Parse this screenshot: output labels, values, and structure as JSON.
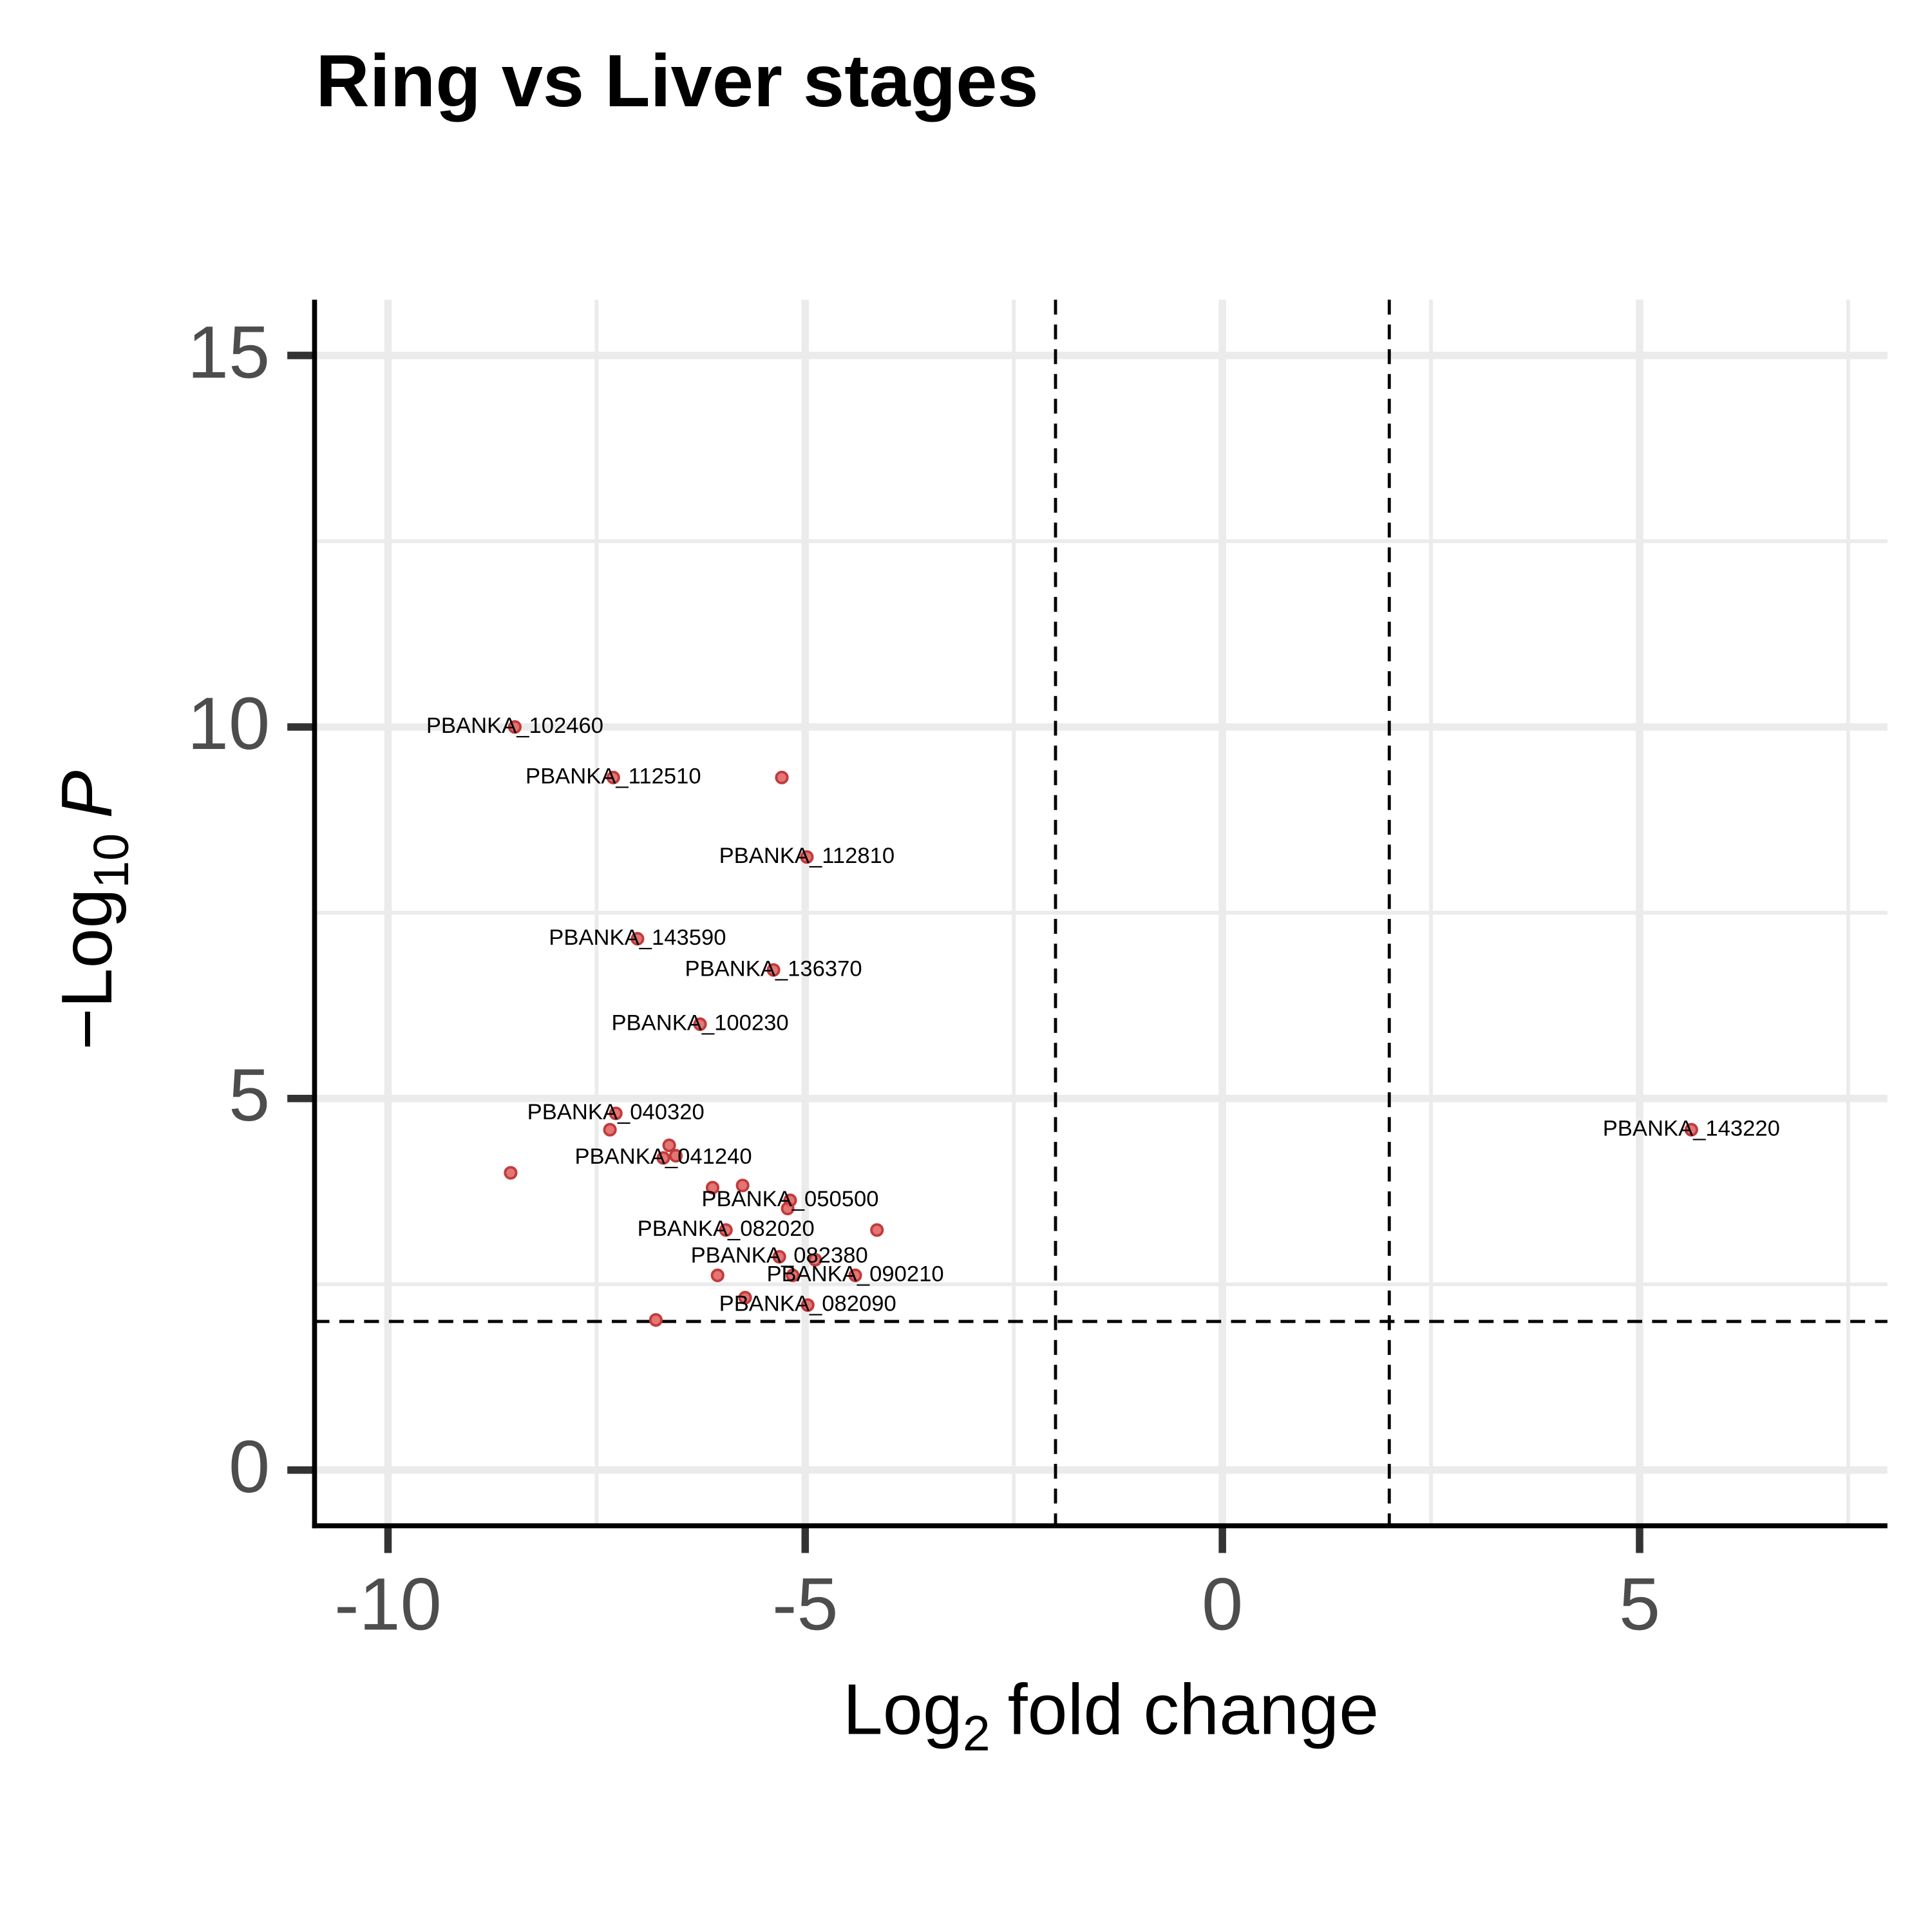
{
  "chart_data": {
    "type": "scatter",
    "title": "Ring vs Liver stages",
    "xlabel": "Log",
    "xlabel_sub": "2",
    "xlabel_rest": "fold change",
    "ylabel": "−Log",
    "ylabel_sub": "10",
    "ylabel_rest": "P",
    "xlim": [
      -10.88,
      7.97
    ],
    "ylim": [
      -0.75,
      15.75
    ],
    "xticks": [
      -10,
      -5,
      0,
      5
    ],
    "yticks": [
      0,
      5,
      10,
      15
    ],
    "x_minor_grid": [
      -7.5,
      -2.5,
      2.5,
      7.5
    ],
    "y_minor_grid": [
      2.5,
      7.5,
      12.5
    ],
    "grid": true,
    "fc_cutoffs": [
      -2,
      2
    ],
    "p_cutoff": 2,
    "color": "#e06666",
    "x": [
      -8.48,
      -7.3,
      -5.28,
      -4.98,
      -7.01,
      -5.38,
      -6.26,
      -7.27,
      -7.34,
      -6.63,
      -6.7,
      -6.55,
      -8.53,
      -6.11,
      -5.75,
      -5.18,
      -5.21,
      -5.95,
      -4.14,
      -5.31,
      -4.88,
      -6.05,
      -5.15,
      -4.4,
      -5.72,
      -4.97,
      -6.79,
      5.62
    ],
    "values": [
      10.0,
      9.32,
      9.32,
      8.25,
      7.15,
      6.73,
      6.0,
      4.8,
      4.58,
      4.37,
      4.2,
      4.23,
      4.0,
      3.8,
      3.83,
      3.63,
      3.52,
      3.23,
      3.23,
      2.87,
      2.83,
      2.62,
      2.62,
      2.62,
      2.32,
      2.22,
      2.02,
      4.58
    ],
    "labels": [
      "PBANKA_102460",
      "PBANKA_112510",
      null,
      "PBANKA_112810",
      "PBANKA_143590",
      "PBANKA_136370",
      "PBANKA_100230",
      "PBANKA_040320",
      null,
      null,
      "PBANKA_041240",
      null,
      null,
      null,
      null,
      "PBANKA_050500",
      null,
      "PBANKA_082020",
      null,
      "PBANKA_082380",
      null,
      null,
      null,
      "PBANKA_090210",
      null,
      "PBANKA_082090",
      null,
      "PBANKA_143220"
    ]
  }
}
